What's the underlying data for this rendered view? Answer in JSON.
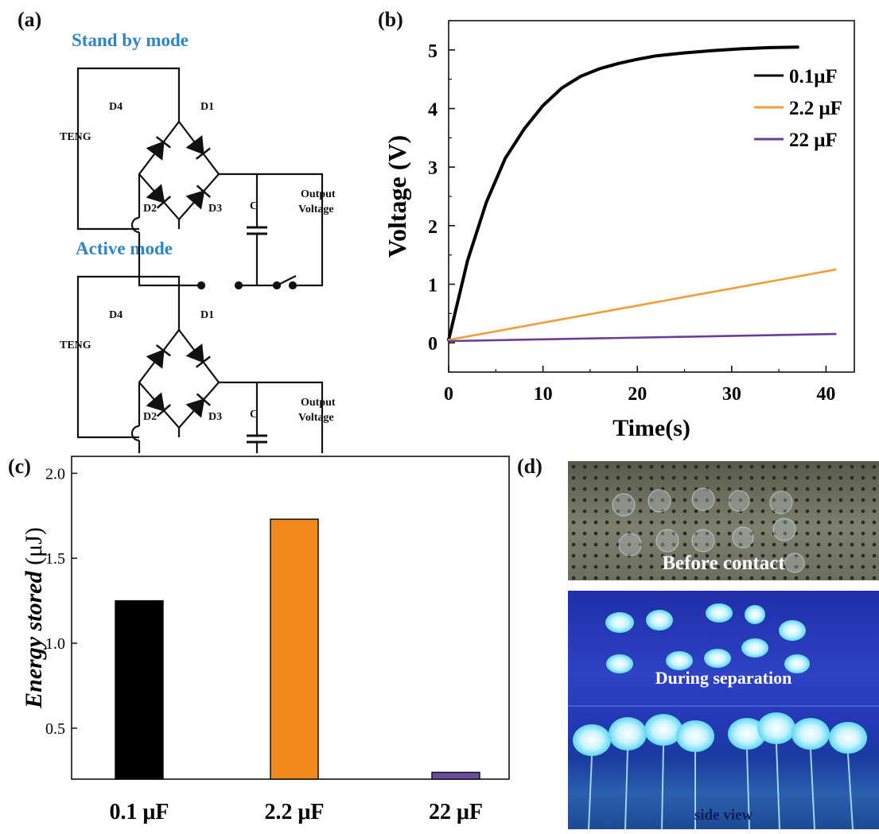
{
  "panels": {
    "a": {
      "label": "(a)",
      "standby_title": "Stand by mode",
      "active_title": "Active mode",
      "labels": {
        "teng": "TENG",
        "d1": "D1",
        "d2": "D2",
        "d3": "D3",
        "d4": "D4",
        "cap": "C",
        "out1": "Output",
        "out2": "Voltage"
      }
    },
    "b": {
      "label": "(b)"
    },
    "c": {
      "label": "(c)"
    },
    "d": {
      "label": "(d)",
      "captions": [
        "Before contact",
        "During separation",
        "side view"
      ]
    }
  },
  "chart_data": [
    {
      "type": "line",
      "panel": "b",
      "xlabel": "Time(s)",
      "ylabel": "Voltage (V)",
      "xlim": [
        0,
        43
      ],
      "ylim": [
        -0.5,
        5.5
      ],
      "xticks": [
        0,
        10,
        20,
        30,
        40
      ],
      "yticks": [
        0,
        1,
        2,
        3,
        4,
        5
      ],
      "legend_position": "top-right",
      "series": [
        {
          "name": "0.1μF",
          "color": "#000000",
          "x": [
            0,
            2,
            4,
            6,
            8,
            10,
            12,
            14,
            16,
            18,
            20,
            22,
            25,
            28,
            31,
            34,
            37
          ],
          "y": [
            0.05,
            1.4,
            2.4,
            3.15,
            3.65,
            4.05,
            4.35,
            4.55,
            4.68,
            4.77,
            4.84,
            4.9,
            4.95,
            4.99,
            5.02,
            5.04,
            5.05
          ]
        },
        {
          "name": "2.2 μF",
          "color": "#f39c3c",
          "x": [
            0,
            41
          ],
          "y": [
            0.05,
            1.25
          ]
        },
        {
          "name": "22 μF",
          "color": "#6a3d9a",
          "x": [
            0,
            41
          ],
          "y": [
            0.03,
            0.15
          ]
        }
      ]
    },
    {
      "type": "bar",
      "panel": "c",
      "ylabel_italic": "Energy stored",
      "ylabel_unit": "(μJ)",
      "categories": [
        "0.1 μF",
        "2.2 μF",
        "22 μF"
      ],
      "values": [
        1.25,
        1.73,
        0.24
      ],
      "colors": [
        "#000000",
        "#f2891e",
        "#6a4c9c"
      ],
      "ylim": [
        0.2,
        2.1
      ],
      "yticks": [
        "0.5",
        "1.0",
        "1.5",
        "2.0"
      ]
    }
  ]
}
